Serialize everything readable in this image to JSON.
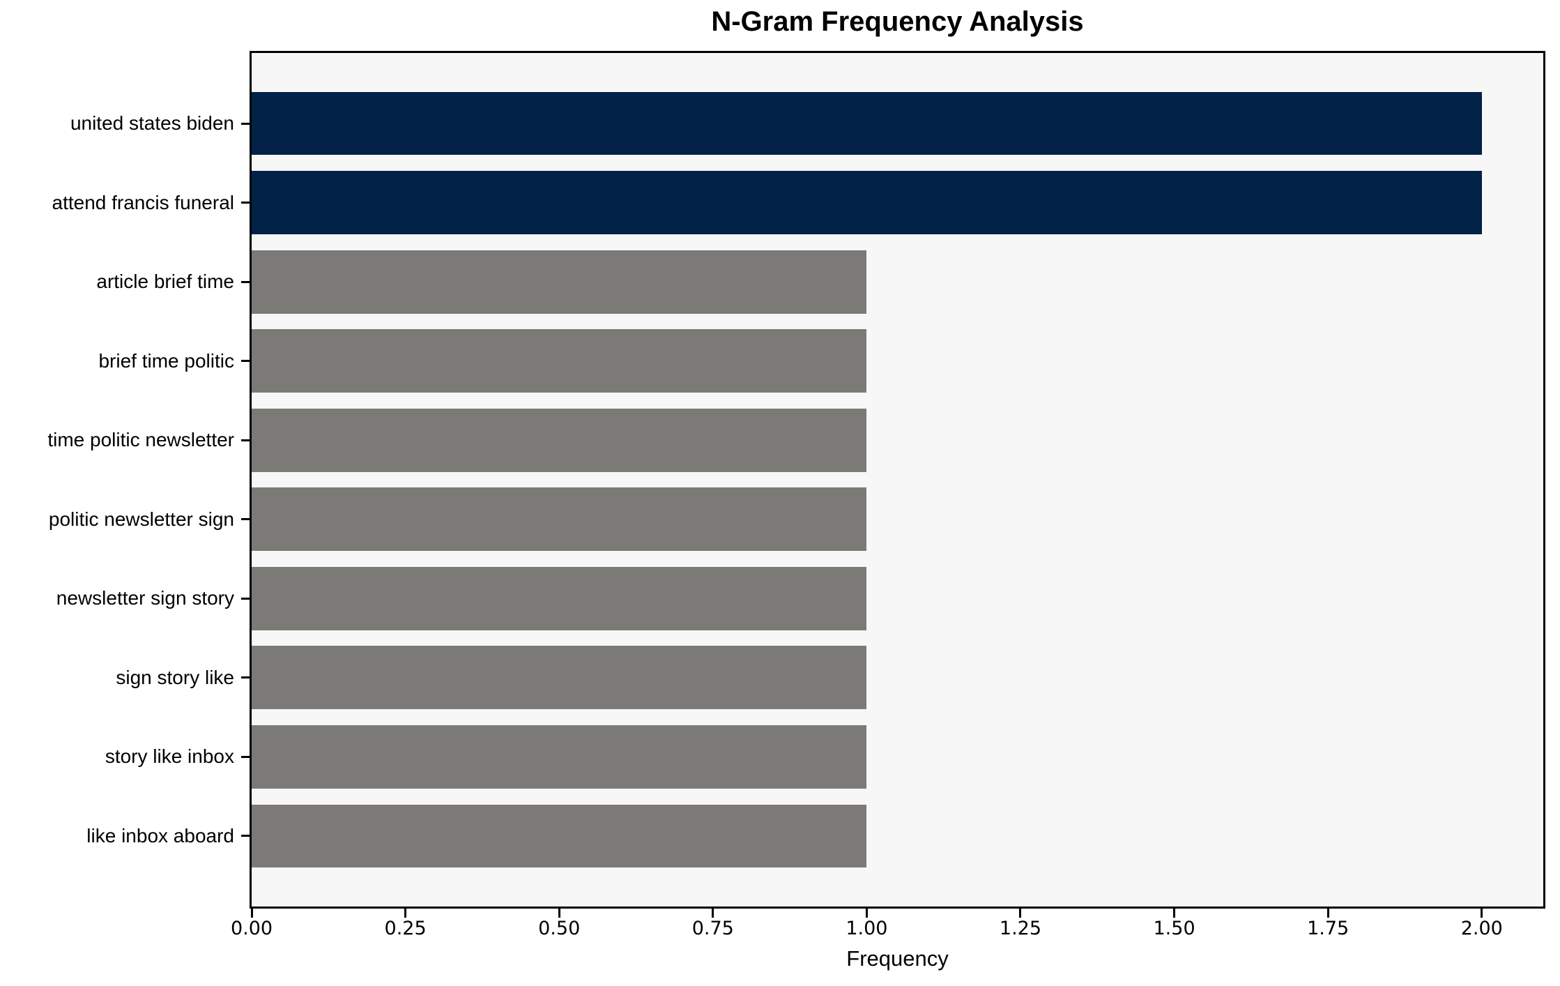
{
  "chart_data": {
    "type": "bar",
    "orientation": "horizontal",
    "title": "N-Gram Frequency Analysis",
    "xlabel": "Frequency",
    "ylabel": "",
    "categories": [
      "united states biden",
      "attend francis funeral",
      "article brief time",
      "brief time politic",
      "time politic newsletter",
      "politic newsletter sign",
      "newsletter sign story",
      "sign story like",
      "story like inbox",
      "like inbox aboard"
    ],
    "values": [
      2,
      2,
      1,
      1,
      1,
      1,
      1,
      1,
      1,
      1
    ],
    "bar_colors": [
      "#032248",
      "#032248",
      "#7b7a77",
      "#7b7a77",
      "#7b7a77",
      "#7b7a77",
      "#7b7a77",
      "#7b7a77",
      "#7b7a77",
      "#7b7a77"
    ],
    "colors": {
      "highlight": "#032248",
      "normal": "#7b7a77",
      "plot_background": "#f8f7f7",
      "spine": "#000000"
    },
    "xlim": [
      0,
      2.1
    ],
    "xticks": [
      0,
      0.25,
      0.5,
      0.75,
      1.0,
      1.25,
      1.5,
      1.75,
      2.0
    ],
    "xtick_labels": [
      "0.00",
      "0.25",
      "0.50",
      "0.75",
      "1.00",
      "1.25",
      "1.50",
      "1.75",
      "2.00"
    ],
    "grid": false,
    "legend_position": "none",
    "bar_height_fraction": 0.8
  }
}
